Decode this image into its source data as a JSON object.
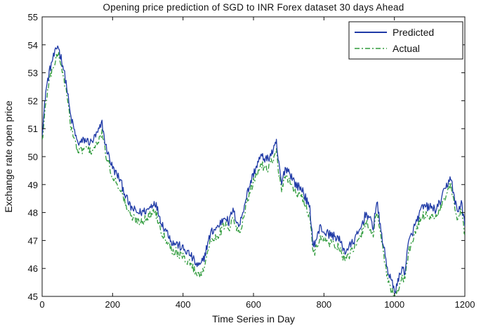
{
  "chart_data": {
    "type": "line",
    "title": "Opening price prediction of SGD to INR Forex dataset 30 days Ahead",
    "xlabel": "Time Series in Day",
    "ylabel": "Exchange rate open price",
    "xlim": [
      0,
      1200
    ],
    "ylim": [
      45,
      55
    ],
    "xticks": [
      0,
      200,
      400,
      600,
      800,
      1000,
      1200
    ],
    "yticks": [
      45,
      46,
      47,
      48,
      49,
      50,
      51,
      52,
      53,
      54,
      55
    ],
    "grid": false,
    "legend_position": "top-right",
    "colors": {
      "predicted": "#1f3aa6",
      "actual": "#2e9a3a"
    },
    "series": [
      {
        "name": "Predicted",
        "style": "solid",
        "x": [
          0,
          5,
          10,
          20,
          30,
          40,
          45,
          50,
          55,
          60,
          70,
          80,
          90,
          100,
          110,
          120,
          140,
          160,
          170,
          180,
          190,
          200,
          220,
          240,
          250,
          260,
          270,
          280,
          300,
          320,
          340,
          360,
          370,
          380,
          400,
          420,
          440,
          450,
          460,
          470,
          480,
          500,
          520,
          530,
          540,
          560,
          580,
          600,
          620,
          640,
          660,
          665,
          670,
          680,
          690,
          700,
          720,
          740,
          760,
          770,
          780,
          790,
          800,
          820,
          840,
          860,
          880,
          900,
          920,
          940,
          950,
          960,
          980,
          990,
          1000,
          1010,
          1020,
          1030,
          1040,
          1060,
          1080,
          1100,
          1120,
          1140,
          1160,
          1170,
          1180,
          1190,
          1200
        ],
        "values": [
          50.9,
          51.5,
          52.3,
          53.0,
          53.5,
          53.8,
          54.0,
          53.7,
          53.5,
          53.2,
          52.5,
          51.5,
          51.0,
          50.5,
          50.5,
          50.6,
          50.5,
          50.9,
          51.2,
          50.4,
          50.0,
          49.6,
          49.2,
          48.5,
          48.2,
          48.1,
          48.0,
          48.0,
          48.1,
          48.4,
          47.6,
          47.2,
          46.9,
          46.9,
          46.7,
          46.5,
          46.1,
          46.1,
          46.4,
          46.9,
          47.3,
          47.5,
          47.9,
          47.6,
          48.1,
          47.5,
          48.6,
          49.4,
          50.0,
          49.9,
          50.3,
          50.5,
          49.9,
          49.0,
          49.6,
          49.5,
          49.0,
          48.8,
          48.1,
          46.8,
          47.1,
          47.5,
          47.3,
          47.2,
          47.1,
          46.6,
          46.9,
          47.3,
          48.0,
          47.5,
          48.4,
          47.5,
          46.0,
          45.6,
          45.2,
          45.5,
          46.0,
          45.9,
          46.9,
          47.6,
          48.2,
          48.2,
          48.1,
          48.7,
          49.3,
          48.5,
          48.0,
          48.4,
          47.5
        ]
      },
      {
        "name": "Actual",
        "style": "dash-dot",
        "x": [
          0,
          5,
          10,
          20,
          30,
          40,
          45,
          50,
          55,
          60,
          70,
          80,
          90,
          100,
          110,
          120,
          140,
          160,
          170,
          180,
          190,
          200,
          220,
          240,
          250,
          260,
          270,
          280,
          300,
          320,
          340,
          360,
          370,
          380,
          400,
          420,
          440,
          450,
          460,
          470,
          480,
          500,
          520,
          530,
          540,
          560,
          580,
          600,
          620,
          640,
          660,
          665,
          670,
          680,
          690,
          700,
          720,
          740,
          760,
          770,
          780,
          790,
          800,
          820,
          840,
          860,
          880,
          900,
          920,
          940,
          950,
          960,
          980,
          990,
          1000,
          1010,
          1020,
          1030,
          1040,
          1060,
          1080,
          1100,
          1120,
          1140,
          1160,
          1170,
          1180,
          1190,
          1200
        ],
        "values": [
          50.6,
          51.1,
          51.9,
          52.7,
          53.2,
          53.5,
          53.7,
          53.5,
          53.2,
          52.9,
          52.2,
          51.2,
          50.7,
          50.2,
          50.2,
          50.3,
          50.2,
          50.5,
          50.9,
          50.1,
          49.7,
          49.3,
          48.9,
          48.2,
          47.9,
          47.8,
          47.7,
          47.7,
          47.8,
          48.1,
          47.3,
          46.9,
          46.6,
          46.6,
          46.4,
          46.2,
          45.8,
          45.8,
          46.1,
          46.6,
          47.0,
          47.2,
          47.6,
          47.3,
          47.8,
          47.2,
          48.3,
          49.1,
          49.7,
          49.6,
          50.0,
          50.2,
          49.6,
          48.7,
          49.3,
          49.2,
          48.7,
          48.5,
          47.8,
          46.5,
          46.8,
          47.2,
          47.0,
          46.9,
          46.8,
          46.3,
          46.6,
          47.0,
          47.7,
          47.2,
          48.1,
          47.2,
          45.7,
          45.3,
          45.0,
          45.2,
          45.7,
          45.6,
          46.6,
          47.3,
          47.9,
          47.9,
          47.8,
          48.4,
          49.0,
          48.2,
          47.7,
          48.1,
          47.2
        ]
      }
    ]
  }
}
